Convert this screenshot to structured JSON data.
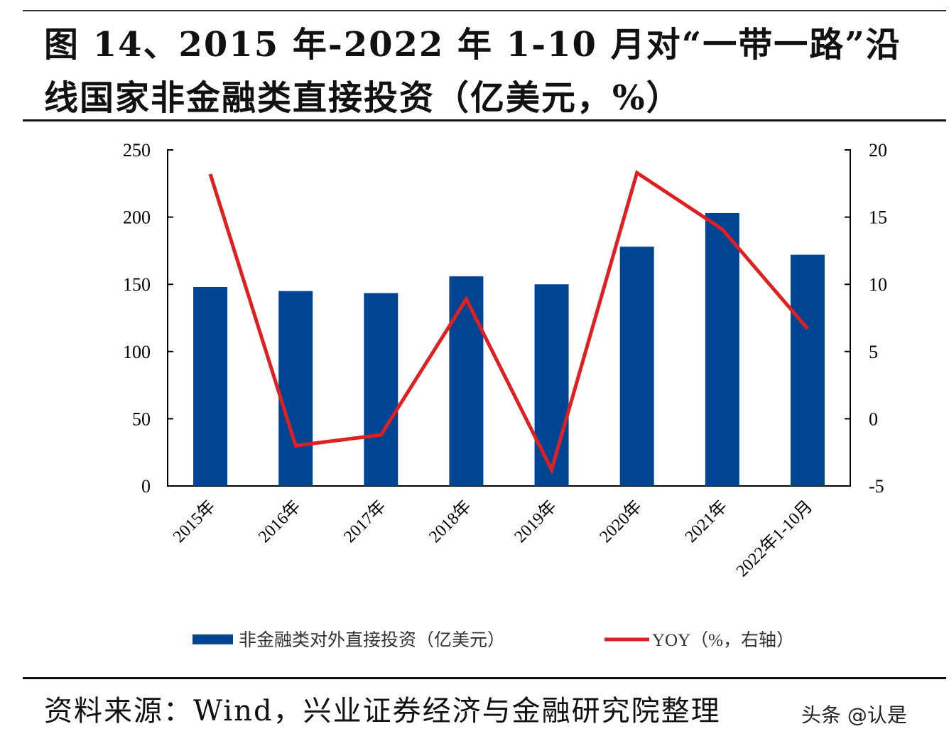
{
  "header": {
    "title": "图 14、2015 年-2022 年 1-10 月对“一带一路”沿线国家非金融类直接投资（亿美元，%）"
  },
  "footer": {
    "source": "资料来源：Wind，兴业证券经济与金融研究院整理",
    "watermark": "头条 @认是"
  },
  "chart_data": {
    "type": "bar+line",
    "categories": [
      "2015年",
      "2016年",
      "2017年",
      "2018年",
      "2019年",
      "2020年",
      "2021年",
      "2022年1-10月"
    ],
    "series": [
      {
        "name": "非金融类对外直接投资（亿美元）",
        "type": "bar",
        "axis": "left",
        "color": "#004494",
        "values": [
          148,
          145,
          143.5,
          156,
          150,
          178,
          203,
          172
        ]
      },
      {
        "name": "YOY（%，右轴）",
        "type": "line",
        "axis": "right",
        "color": "#e02020",
        "values": [
          18.2,
          -2.0,
          -1.2,
          8.9,
          -3.8,
          18.3,
          14.1,
          6.7
        ]
      }
    ],
    "ylim_left": [
      0,
      250
    ],
    "yticks_left": [
      "0",
      "50",
      "100",
      "150",
      "200",
      "250"
    ],
    "ylim_right": [
      -5,
      20
    ],
    "yticks_right": [
      "-5",
      "0",
      "5",
      "10",
      "15",
      "20"
    ],
    "grid": false,
    "legend": "bottom"
  }
}
